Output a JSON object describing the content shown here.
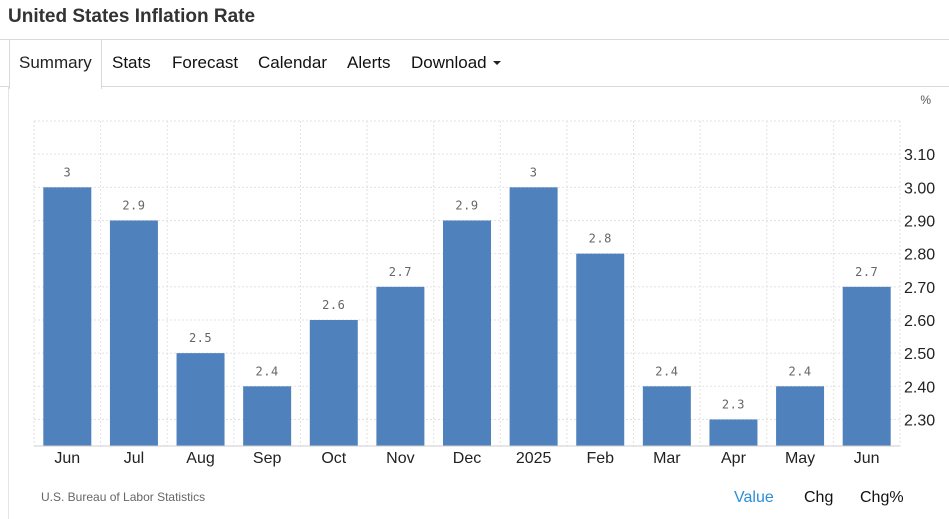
{
  "page": {
    "title": "United States Inflation Rate"
  },
  "tabs": [
    {
      "label": "Summary",
      "active": true
    },
    {
      "label": "Stats"
    },
    {
      "label": "Forecast"
    },
    {
      "label": "Calendar"
    },
    {
      "label": "Alerts"
    },
    {
      "label": "Download",
      "has_dropdown": true
    }
  ],
  "chart_data": {
    "type": "bar",
    "categories": [
      "Jun",
      "Jul",
      "Aug",
      "Sep",
      "Oct",
      "Nov",
      "Dec",
      "2025",
      "Feb",
      "Mar",
      "Apr",
      "May",
      "Jun"
    ],
    "values": [
      3,
      2.9,
      2.5,
      2.4,
      2.6,
      2.7,
      2.9,
      3,
      2.8,
      2.4,
      2.3,
      2.4,
      2.7
    ],
    "data_labels": [
      "3",
      "2.9",
      "2.5",
      "2.4",
      "2.6",
      "2.7",
      "2.9",
      "3",
      "2.8",
      "2.4",
      "2.3",
      "2.4",
      "2.7"
    ],
    "y_unit": "%",
    "y_ticks": [
      "3.10",
      "3.00",
      "2.90",
      "2.80",
      "2.70",
      "2.60",
      "2.50",
      "2.40",
      "2.30"
    ],
    "ylim": [
      2.22,
      3.2
    ],
    "y_axis_position": "right",
    "grid": true,
    "bar_color": "#4f81bd"
  },
  "footer": {
    "source": "U.S. Bureau of Labor Statistics",
    "toggles": [
      {
        "label": "Value",
        "selected": true
      },
      {
        "label": "Chg"
      },
      {
        "label": "Chg%"
      }
    ],
    "selected_color": "#2a8fd6"
  }
}
